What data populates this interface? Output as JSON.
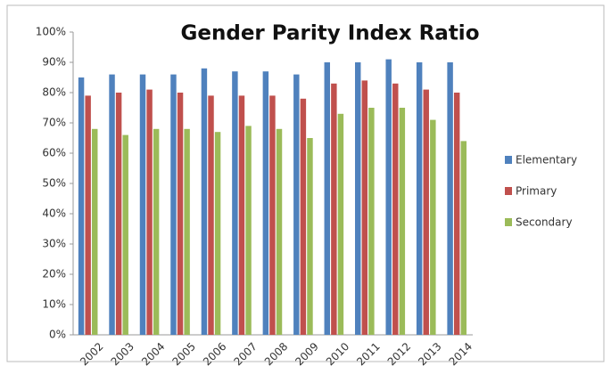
{
  "chart_data": {
    "type": "bar",
    "title": "Gender Parity Index Ratio",
    "categories": [
      "2002",
      "2003",
      "2004",
      "2005",
      "2006",
      "2007",
      "2008",
      "2009",
      "2010",
      "2011",
      "2012",
      "2013",
      "2014"
    ],
    "series": [
      {
        "name": "Elementary",
        "color": "#4f81bd",
        "values": [
          85,
          86,
          86,
          86,
          88,
          87,
          87,
          86,
          90,
          90,
          91,
          90,
          90
        ]
      },
      {
        "name": "Primary",
        "color": "#c0504d",
        "values": [
          79,
          80,
          81,
          80,
          79,
          79,
          79,
          78,
          83,
          84,
          83,
          81,
          80
        ]
      },
      {
        "name": "Secondary",
        "color": "#9bbb59",
        "values": [
          68,
          66,
          68,
          68,
          67,
          69,
          68,
          65,
          73,
          75,
          75,
          71,
          64
        ]
      }
    ],
    "ylim": [
      0,
      100
    ],
    "yticks": [
      {
        "value": 0,
        "label": "0%"
      },
      {
        "value": 10,
        "label": "10%"
      },
      {
        "value": 20,
        "label": "20%"
      },
      {
        "value": 30,
        "label": "30%"
      },
      {
        "value": 40,
        "label": "40%"
      },
      {
        "value": 50,
        "label": "50%"
      },
      {
        "value": 60,
        "label": "60%"
      },
      {
        "value": 70,
        "label": "70%"
      },
      {
        "value": 80,
        "label": "80%"
      },
      {
        "value": 90,
        "label": "90%"
      },
      {
        "value": 100,
        "label": "100%"
      }
    ],
    "grid": false,
    "legend": "right"
  }
}
